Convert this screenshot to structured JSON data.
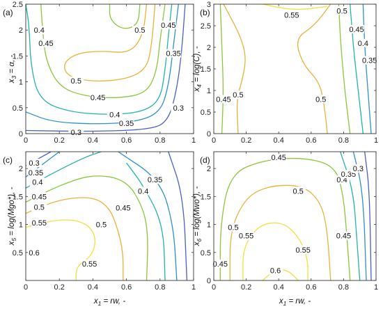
{
  "chart_data": [
    {
      "type": "contour",
      "panel_label": "(a)",
      "xlabel": "",
      "ylabel": "x3 = α, -",
      "xlim": [
        0,
        1
      ],
      "ylim": [
        0,
        2.5
      ],
      "xticks": [
        "0",
        "0.2",
        "0.4",
        "0.6",
        "0.8",
        "1"
      ],
      "yticks": [
        "0",
        "0.5",
        "1",
        "1.5",
        "2",
        "2.5"
      ],
      "levels": [
        {
          "value": "0.3",
          "color": "#4a5fc1",
          "points": [
            [
              0,
              0.06
            ],
            [
              0.4,
              0.04
            ],
            [
              0.75,
              0.08
            ],
            [
              0.85,
              0.25
            ],
            [
              0.9,
              0.85
            ],
            [
              0.93,
              1.6
            ],
            [
              0.95,
              2.5
            ]
          ]
        },
        {
          "value": "0.35",
          "color": "#2e8fd0",
          "points": [
            [
              0,
              0.42
            ],
            [
              0.15,
              0.23
            ],
            [
              0.4,
              0.18
            ],
            [
              0.65,
              0.22
            ],
            [
              0.8,
              0.4
            ],
            [
              0.85,
              0.9
            ],
            [
              0.88,
              1.7
            ],
            [
              0.91,
              2.5
            ]
          ]
        },
        {
          "value": "0.4",
          "color": "#24b3a8",
          "points": [
            [
              0,
              2.5
            ],
            [
              0.02,
              2.1
            ],
            [
              0.03,
              1.3
            ],
            [
              0.08,
              0.65
            ],
            [
              0.25,
              0.42
            ],
            [
              0.5,
              0.36
            ],
            [
              0.7,
              0.42
            ],
            [
              0.8,
              0.65
            ],
            [
              0.83,
              1.2
            ],
            [
              0.85,
              1.9
            ],
            [
              0.87,
              2.5
            ]
          ]
        },
        {
          "value": "0.45",
          "color": "#8cc63e",
          "points": [
            [
              0.09,
              2.5
            ],
            [
              0.1,
              2.0
            ],
            [
              0.12,
              1.4
            ],
            [
              0.2,
              0.9
            ],
            [
              0.35,
              0.72
            ],
            [
              0.55,
              0.68
            ],
            [
              0.72,
              0.78
            ],
            [
              0.78,
              1.2
            ],
            [
              0.8,
              1.8
            ],
            [
              0.83,
              2.5
            ]
          ]
        },
        {
          "value": "0.5",
          "color": "#e8b23a",
          "points": [
            [
              0.72,
              2.5
            ],
            [
              0.7,
              1.9
            ],
            [
              0.62,
              1.55
            ],
            [
              0.45,
              1.6
            ],
            [
              0.3,
              1.55
            ],
            [
              0.22,
              1.35
            ],
            [
              0.25,
              1.1
            ],
            [
              0.4,
              1.0
            ],
            [
              0.6,
              1.05
            ],
            [
              0.72,
              1.25
            ],
            [
              0.75,
              1.7
            ],
            [
              0.77,
              2.5
            ]
          ]
        },
        {
          "value": "0.45",
          "color": "#8cc63e",
          "points": [
            [
              0.5,
              2.5
            ],
            [
              0.5,
              2.2
            ],
            [
              0.58,
              2.0
            ],
            [
              0.67,
              2.1
            ],
            [
              0.68,
              2.5
            ]
          ]
        }
      ],
      "contour_labels": [
        {
          "text": "0.3",
          "x": 0.3,
          "y": 0.03
        },
        {
          "text": "0.35",
          "x": 0.6,
          "y": 0.2
        },
        {
          "text": "0.4",
          "x": 0.53,
          "y": 0.37
        },
        {
          "text": "0.45",
          "x": 0.43,
          "y": 0.7
        },
        {
          "text": "0.5",
          "x": 0.3,
          "y": 1.02
        },
        {
          "text": "0.4",
          "x": 0.08,
          "y": 2.0
        },
        {
          "text": "0.45",
          "x": 0.12,
          "y": 1.75
        },
        {
          "text": "0.5",
          "x": 0.68,
          "y": 2.0
        },
        {
          "text": "0.45",
          "x": 0.85,
          "y": 2.1
        },
        {
          "text": "0.35",
          "x": 0.88,
          "y": 1.55
        },
        {
          "text": "0.3",
          "x": 0.91,
          "y": 0.5
        }
      ]
    },
    {
      "type": "contour",
      "panel_label": "(b)",
      "xlabel": "",
      "ylabel": "x4 = log(C), -",
      "xlim": [
        0,
        1
      ],
      "ylim": [
        0,
        3
      ],
      "xticks": [
        "0",
        "0.2",
        "0.4",
        "0.6",
        "0.8",
        "1"
      ],
      "yticks": [
        "0",
        "0.5",
        "1",
        "1.5",
        "2",
        "2.5",
        "3"
      ],
      "levels": [
        {
          "value": "0.35",
          "color": "#2e8fd0",
          "points": [
            [
              0.92,
              3
            ],
            [
              0.93,
              2.0
            ],
            [
              0.95,
              1.0
            ],
            [
              0.97,
              0
            ]
          ]
        },
        {
          "value": "0.4",
          "color": "#24b3a8",
          "points": [
            [
              0.84,
              3
            ],
            [
              0.86,
              2.0
            ],
            [
              0.89,
              1.0
            ],
            [
              0.92,
              0
            ]
          ]
        },
        {
          "value": "0.45",
          "color": "#8cc63e",
          "points": [
            [
              0.77,
              3
            ],
            [
              0.78,
              2.2
            ],
            [
              0.8,
              1.3
            ],
            [
              0.82,
              0.6
            ],
            [
              0.84,
              0
            ]
          ]
        },
        {
          "value": "0.45",
          "color": "#8cc63e",
          "points": [
            [
              0.04,
              3
            ],
            [
              0.05,
              2.0
            ],
            [
              0.06,
              1.0
            ],
            [
              0.05,
              0
            ]
          ]
        },
        {
          "value": "0.5",
          "color": "#e8b23a",
          "points": [
            [
              0.06,
              3
            ],
            [
              0.16,
              2.3
            ],
            [
              0.2,
              1.8
            ],
            [
              0.18,
              1.3
            ],
            [
              0.14,
              0.8
            ],
            [
              0.15,
              0
            ]
          ]
        },
        {
          "value": "0.5",
          "color": "#e8b23a",
          "points": [
            [
              0.72,
              3
            ],
            [
              0.62,
              2.5
            ],
            [
              0.5,
              2.2
            ],
            [
              0.55,
              1.6
            ],
            [
              0.65,
              1.2
            ],
            [
              0.68,
              0.7
            ],
            [
              0.7,
              0
            ]
          ]
        },
        {
          "value": "0.55",
          "color": "#f0e140",
          "points": [
            [
              0.3,
              3
            ],
            [
              0.5,
              2.85
            ],
            [
              0.7,
              2.95
            ]
          ]
        }
      ],
      "contour_labels": [
        {
          "text": "0.55",
          "x": 0.48,
          "y": 2.75
        },
        {
          "text": "0.5",
          "x": 0.79,
          "y": 2.85
        },
        {
          "text": "0.45",
          "x": 0.88,
          "y": 2.42
        },
        {
          "text": "0.4",
          "x": 0.92,
          "y": 2.1
        },
        {
          "text": "0.35",
          "x": 0.96,
          "y": 1.7
        },
        {
          "text": "0.5",
          "x": 0.15,
          "y": 0.9
        },
        {
          "text": "0.45",
          "x": 0.06,
          "y": 0.8
        },
        {
          "text": "0.5",
          "x": 0.66,
          "y": 0.8
        }
      ]
    },
    {
      "type": "contour",
      "panel_label": "(c)",
      "xlabel": "x1 = rw, -",
      "ylabel": "x5 = log(Mgo*), -",
      "xlim": [
        0,
        1
      ],
      "ylim": [
        0,
        2.3
      ],
      "xticks": [
        "0",
        "0.2",
        "0.4",
        "0.6",
        "0.8",
        "1"
      ],
      "yticks": [
        "0.5",
        "1",
        "1.5",
        "2"
      ],
      "levels": [
        {
          "value": "0.3",
          "color": "#4a5fc1",
          "points": [
            [
              0,
              2.05
            ],
            [
              0.15,
              2.3
            ]
          ]
        },
        {
          "value": "0.35",
          "color": "#2e8fd0",
          "points": [
            [
              0,
              1.85
            ],
            [
              0.2,
              2.3
            ]
          ]
        },
        {
          "value": "0.4",
          "color": "#24b3a8",
          "points": [
            [
              0,
              1.65
            ],
            [
              0.15,
              1.9
            ],
            [
              0.35,
              2.2
            ],
            [
              0.45,
              2.3
            ]
          ]
        },
        {
          "value": "0.45",
          "color": "#8cc63e",
          "points": [
            [
              0,
              1.4
            ],
            [
              0.2,
              1.7
            ],
            [
              0.4,
              1.9
            ],
            [
              0.6,
              1.8
            ],
            [
              0.7,
              1.3
            ],
            [
              0.73,
              0.8
            ],
            [
              0.72,
              0
            ]
          ]
        },
        {
          "value": "0.5",
          "color": "#e8b23a",
          "points": [
            [
              0,
              1.2
            ],
            [
              0.2,
              1.45
            ],
            [
              0.4,
              1.5
            ],
            [
              0.5,
              1.3
            ],
            [
              0.55,
              0.9
            ],
            [
              0.58,
              0.5
            ],
            [
              0.58,
              0
            ]
          ]
        },
        {
          "value": "0.55",
          "color": "#f0e140",
          "points": [
            [
              0,
              0.95
            ],
            [
              0.2,
              1.1
            ],
            [
              0.35,
              1.05
            ],
            [
              0.42,
              0.8
            ],
            [
              0.4,
              0.45
            ],
            [
              0.3,
              0.25
            ],
            [
              0.3,
              0
            ]
          ]
        },
        {
          "value": "0.35",
          "color": "#2e8fd0",
          "points": [
            [
              0.55,
              2.3
            ],
            [
              0.8,
              1.8
            ],
            [
              0.88,
              1.0
            ],
            [
              0.9,
              0
            ]
          ]
        },
        {
          "value": "0.3",
          "color": "#4a5fc1",
          "points": [
            [
              0.85,
              2.3
            ],
            [
              0.94,
              1.5
            ],
            [
              0.96,
              0
            ]
          ]
        },
        {
          "value": "0.4",
          "color": "#24b3a8",
          "points": [
            [
              0.6,
              2.1
            ],
            [
              0.7,
              1.7
            ],
            [
              0.82,
              1.0
            ],
            [
              0.83,
              0
            ]
          ]
        }
      ],
      "contour_labels": [
        {
          "text": "0.3",
          "x": 0.05,
          "y": 2.1
        },
        {
          "text": "0.35",
          "x": 0.06,
          "y": 1.93
        },
        {
          "text": "0.4",
          "x": 0.07,
          "y": 1.76
        },
        {
          "text": "0.45",
          "x": 0.08,
          "y": 1.5
        },
        {
          "text": "0.5",
          "x": 0.08,
          "y": 1.31
        },
        {
          "text": "0.55",
          "x": 0.08,
          "y": 1.03
        },
        {
          "text": "0.6",
          "x": 0.05,
          "y": 0.5
        },
        {
          "text": "0.5",
          "x": 0.45,
          "y": 1.0
        },
        {
          "text": "0.45",
          "x": 0.58,
          "y": 1.3
        },
        {
          "text": "0.4",
          "x": 0.7,
          "y": 1.6
        },
        {
          "text": "0.35",
          "x": 0.77,
          "y": 1.8
        },
        {
          "text": "0.55",
          "x": 0.38,
          "y": 0.3
        }
      ]
    },
    {
      "type": "contour",
      "panel_label": "(d)",
      "xlabel": "x1 = rw, -",
      "ylabel": "x6 = log(Mwo*), -",
      "xlim": [
        0,
        1
      ],
      "ylim": [
        0,
        2.3
      ],
      "xticks": [
        "0",
        "0.2",
        "0.4",
        "0.6",
        "0.8",
        "1"
      ],
      "yticks": [
        "0",
        "0.5",
        "1",
        "1.5",
        "2"
      ],
      "levels": [
        {
          "value": "0.45",
          "color": "#8cc63e",
          "points": [
            [
              0.04,
              0
            ],
            [
              0.04,
              1.0
            ],
            [
              0.1,
              1.9
            ],
            [
              0.3,
              2.15
            ],
            [
              0.55,
              2.2
            ],
            [
              0.75,
              2.05
            ],
            [
              0.8,
              1.5
            ],
            [
              0.82,
              0.8
            ],
            [
              0.84,
              0
            ]
          ]
        },
        {
          "value": "0.5",
          "color": "#e8b23a",
          "points": [
            [
              0.1,
              0
            ],
            [
              0.1,
              0.9
            ],
            [
              0.2,
              1.5
            ],
            [
              0.35,
              1.7
            ],
            [
              0.55,
              1.7
            ],
            [
              0.66,
              1.4
            ],
            [
              0.7,
              0.9
            ],
            [
              0.72,
              0
            ]
          ]
        },
        {
          "value": "0.55",
          "color": "#f0e140",
          "points": [
            [
              0.18,
              0
            ],
            [
              0.18,
              0.6
            ],
            [
              0.28,
              1.0
            ],
            [
              0.42,
              1.05
            ],
            [
              0.52,
              0.8
            ],
            [
              0.58,
              0.4
            ],
            [
              0.58,
              0
            ]
          ]
        },
        {
          "value": "0.6",
          "color": "#f0e140",
          "points": [
            [
              0.3,
              0
            ],
            [
              0.38,
              0.2
            ],
            [
              0.46,
              0.18
            ],
            [
              0.52,
              0
            ]
          ]
        },
        {
          "value": "0.4",
          "color": "#24b3a8",
          "points": [
            [
              0.78,
              2.3
            ],
            [
              0.86,
              1.6
            ],
            [
              0.88,
              0.8
            ],
            [
              0.9,
              0
            ]
          ]
        },
        {
          "value": "0.35",
          "color": "#2e8fd0",
          "points": [
            [
              0.86,
              2.3
            ],
            [
              0.92,
              1.6
            ],
            [
              0.94,
              0
            ]
          ]
        },
        {
          "value": "0.3",
          "color": "#4a5fc1",
          "points": [
            [
              0.93,
              2.3
            ],
            [
              0.96,
              1.6
            ],
            [
              0.97,
              0
            ]
          ]
        }
      ],
      "contour_labels": [
        {
          "text": "0.45",
          "x": 0.4,
          "y": 2.2
        },
        {
          "text": "0.5",
          "x": 0.52,
          "y": 1.6
        },
        {
          "text": "0.55",
          "x": 0.55,
          "y": 0.55
        },
        {
          "text": "0.6",
          "x": 0.38,
          "y": 0.18
        },
        {
          "text": "0.5",
          "x": 0.12,
          "y": 0.95
        },
        {
          "text": "0.55",
          "x": 0.2,
          "y": 0.8
        },
        {
          "text": "0.45",
          "x": 0.8,
          "y": 0.8
        },
        {
          "text": "0.4",
          "x": 0.79,
          "y": 1.8
        },
        {
          "text": "0.35",
          "x": 0.83,
          "y": 1.9
        },
        {
          "text": "0.3",
          "x": 0.89,
          "y": 2.0
        },
        {
          "text": "0.45",
          "x": 0.04,
          "y": 0.3
        }
      ]
    }
  ]
}
